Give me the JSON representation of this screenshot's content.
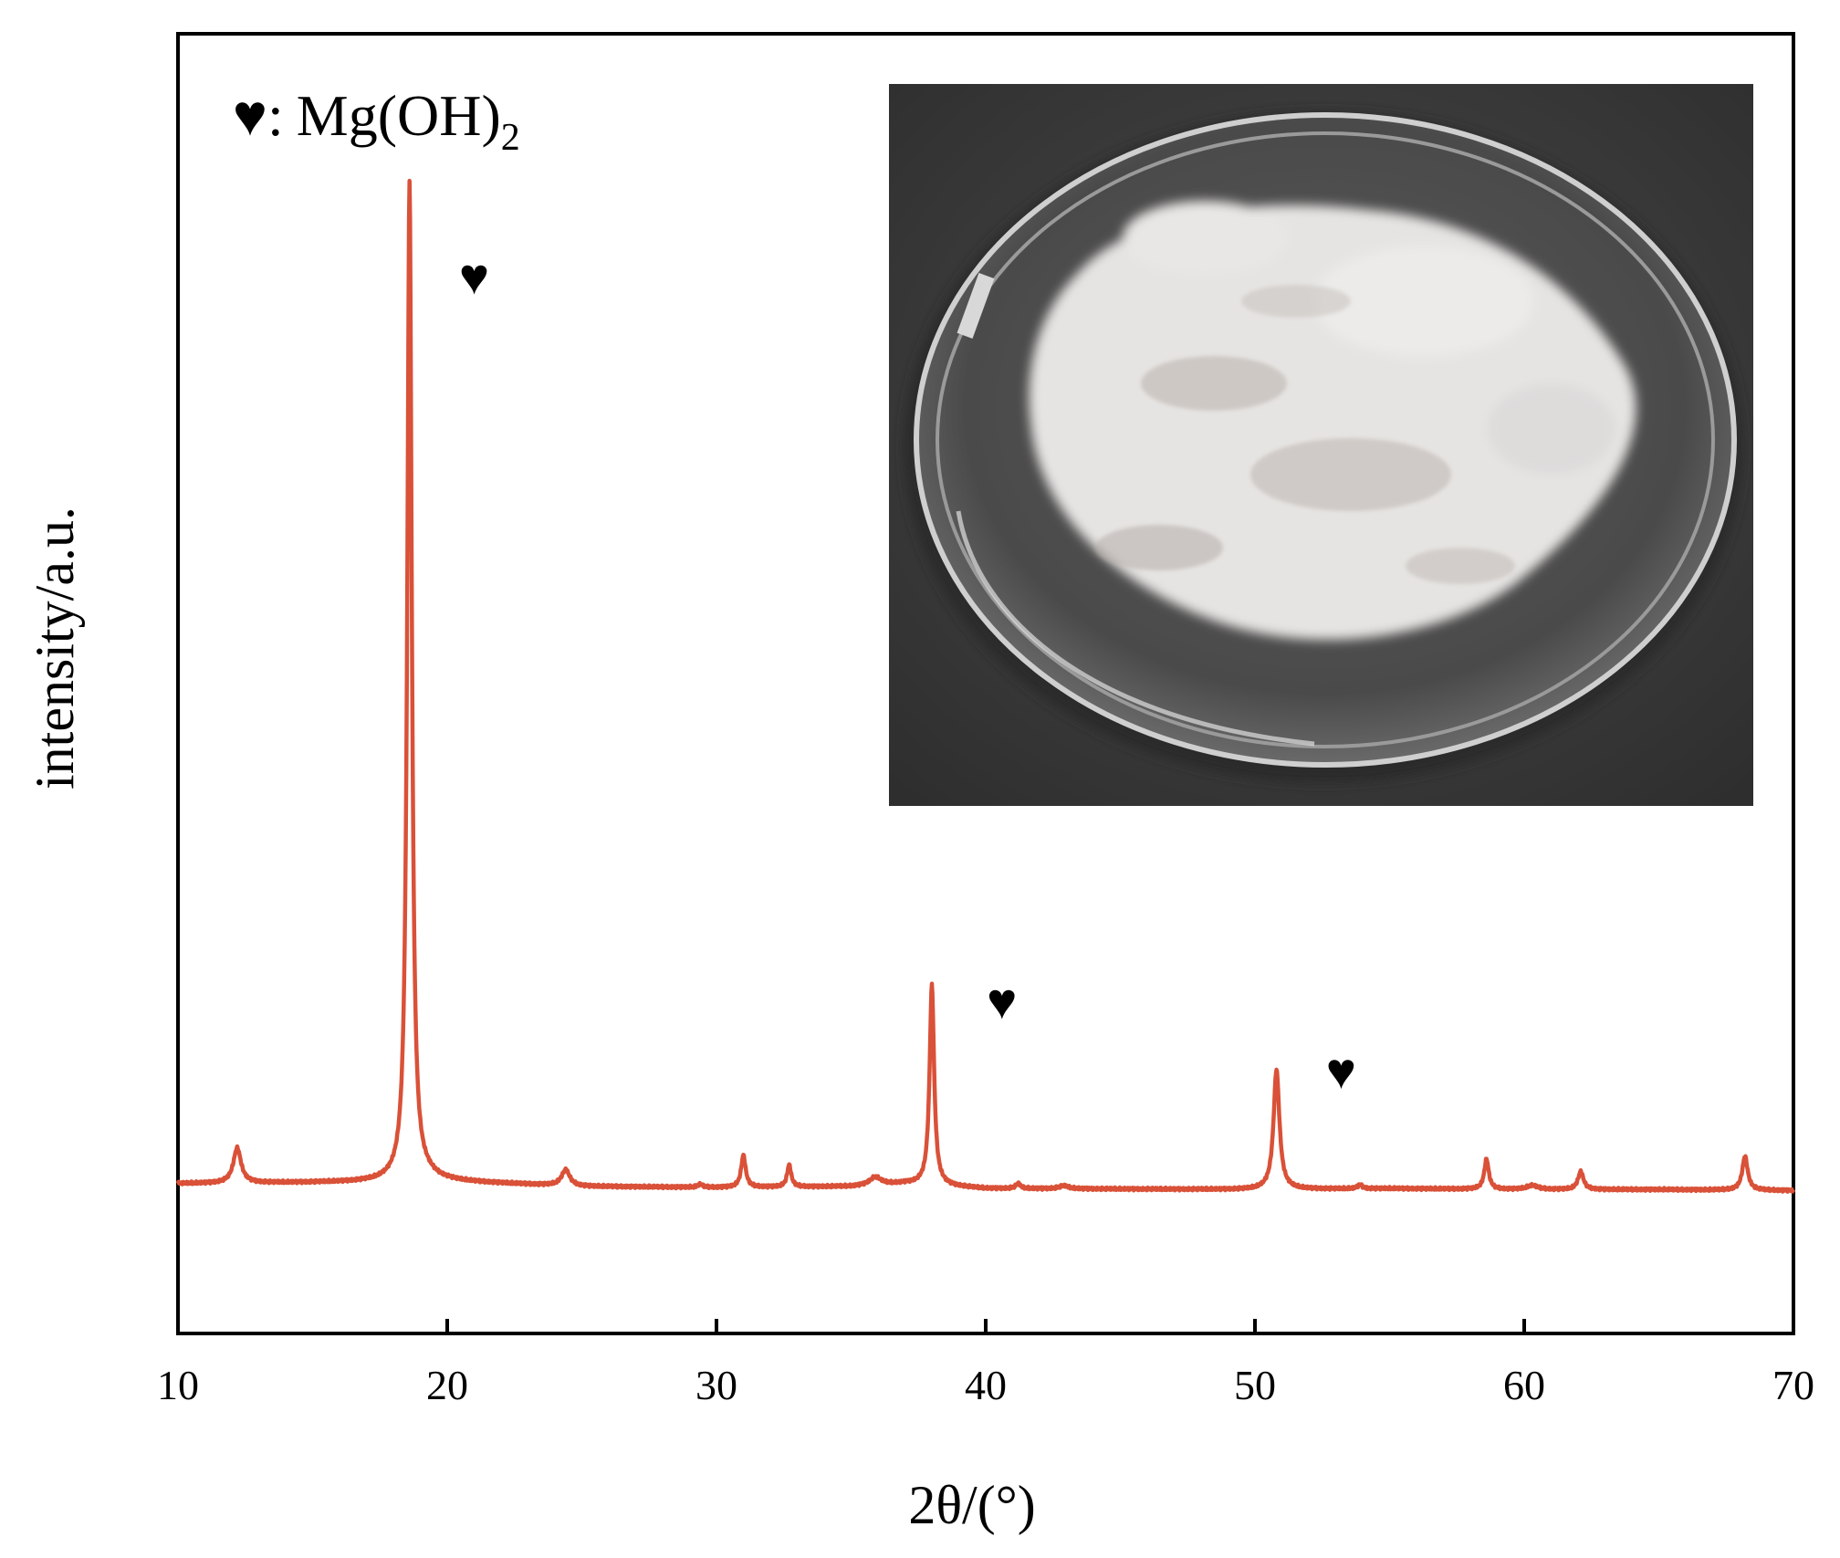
{
  "chart_data": {
    "type": "line",
    "xlabel": "2θ/(°)",
    "ylabel": "intensity/a.u.",
    "xlim": [
      10,
      70
    ],
    "ylim": [
      -0.15,
      1.15
    ],
    "yticks_shown": false,
    "x_ticks": [
      10,
      20,
      30,
      40,
      50,
      60,
      70
    ],
    "x_tick_labels": [
      "10",
      "20",
      "30",
      "40",
      "50",
      "60",
      "70"
    ],
    "legend": {
      "marker": "♥",
      "separator": ":",
      "label_base": "Mg(OH)",
      "label_subscript": "2",
      "placement": "top-left"
    },
    "peak_markers": [
      {
        "symbol": "♥",
        "x": 21.0,
        "y": 0.89
      },
      {
        "symbol": "♥",
        "x": 40.6,
        "y": 0.165
      },
      {
        "symbol": "♥",
        "x": 53.2,
        "y": 0.095
      }
    ],
    "series": [
      {
        "color": "#d95138",
        "baseline": [
          [
            10,
            0.0
          ],
          [
            20,
            0.002
          ],
          [
            25,
            -0.003
          ],
          [
            30,
            -0.004
          ],
          [
            35,
            -0.003
          ],
          [
            37,
            0.0
          ],
          [
            40,
            -0.005
          ],
          [
            50,
            -0.006
          ],
          [
            55,
            -0.005
          ],
          [
            60,
            -0.006
          ],
          [
            65,
            -0.006
          ],
          [
            70,
            -0.007
          ]
        ],
        "peaks": [
          {
            "x": 12.2,
            "h": 0.035,
            "w": 0.17
          },
          {
            "x": 18.6,
            "h": 1.0,
            "w": 0.1
          },
          {
            "x": 19.2,
            "h": 0.004,
            "w": 0.5
          },
          {
            "x": 24.4,
            "h": 0.016,
            "w": 0.18
          },
          {
            "x": 29.4,
            "h": 0.003,
            "w": 0.1
          },
          {
            "x": 31.0,
            "h": 0.032,
            "w": 0.1
          },
          {
            "x": 32.7,
            "h": 0.022,
            "w": 0.09
          },
          {
            "x": 35.9,
            "h": 0.008,
            "w": 0.25
          },
          {
            "x": 38.0,
            "h": 0.2,
            "w": 0.1
          },
          {
            "x": 41.2,
            "h": 0.005,
            "w": 0.1
          },
          {
            "x": 42.9,
            "h": 0.003,
            "w": 0.2
          },
          {
            "x": 50.8,
            "h": 0.12,
            "w": 0.13
          },
          {
            "x": 53.9,
            "h": 0.004,
            "w": 0.1
          },
          {
            "x": 58.6,
            "h": 0.03,
            "w": 0.1
          },
          {
            "x": 60.3,
            "h": 0.004,
            "w": 0.25
          },
          {
            "x": 62.1,
            "h": 0.018,
            "w": 0.12
          },
          {
            "x": 68.2,
            "h": 0.034,
            "w": 0.12
          }
        ]
      }
    ],
    "inset": {
      "description_visible": false,
      "dish_color": "#c9c9c9",
      "background_color": "#3e3e3e",
      "powder_color": "#e8e6e4"
    }
  }
}
